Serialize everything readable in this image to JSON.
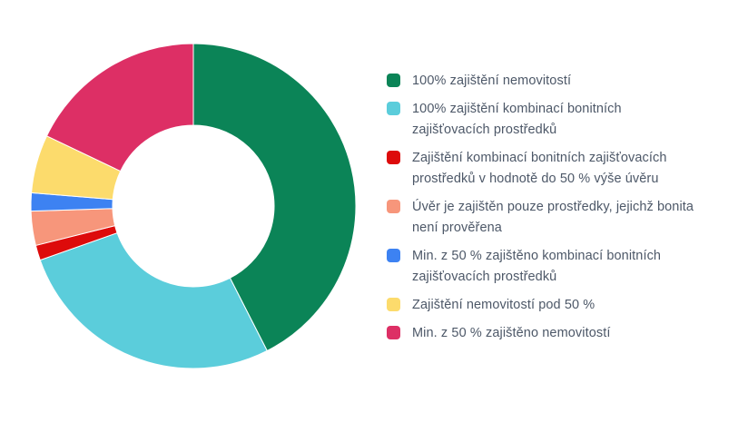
{
  "chart_data": {
    "type": "pie",
    "donut": true,
    "legend_position": "right",
    "slices": [
      {
        "label": "100% zajištění nemovitostí",
        "value": 42.5,
        "color": "#0b8457"
      },
      {
        "label": "100% zajištění kombinací bonitních zajišťovacích prostředků",
        "value": 27.1,
        "color": "#5bcddb"
      },
      {
        "label": "Zajištění kombinací bonitních zajišťovacích prostředků v hodnotě do 50 % výše úvěru",
        "value": 1.5,
        "color": "#dd0b0b"
      },
      {
        "label": "Úvěr je zajištěn pouze prostředky, jejichž bonita není prověřena",
        "value": 3.4,
        "color": "#f7967b"
      },
      {
        "label": "Min. z 50 % zajištěno kombinací bonitních zajišťovacích prostředků",
        "value": 1.8,
        "color": "#3d82f2"
      },
      {
        "label": "Zajištění nemovitostí pod 50 %",
        "value": 5.8,
        "color": "#fcdb6c"
      },
      {
        "label": "Min. z 50 % zajištěno nemovitostí",
        "value": 17.9,
        "color": "#dd2f65"
      }
    ]
  }
}
